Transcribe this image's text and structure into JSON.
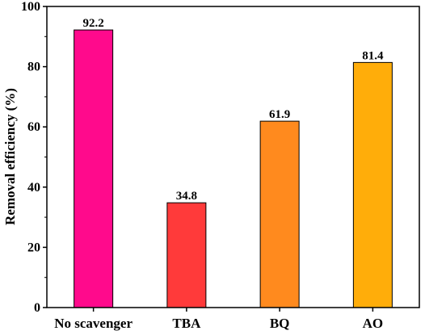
{
  "chart_data": {
    "type": "bar",
    "categories": [
      "No scavenger",
      "TBA",
      "BQ",
      "AO"
    ],
    "values": [
      92.2,
      34.8,
      61.9,
      81.4
    ],
    "data_labels": [
      "92.2",
      "34.8",
      "61.9",
      "81.4"
    ],
    "colors": [
      "#ff0a8c",
      "#ff3a3a",
      "#ff8a1e",
      "#ffad0a"
    ],
    "title": "",
    "xlabel": "",
    "ylabel": "Removal efficiency (%)",
    "ylim": [
      0,
      100
    ],
    "yticks": [
      0,
      20,
      40,
      60,
      80,
      100
    ],
    "grid": false,
    "legend": "none"
  }
}
